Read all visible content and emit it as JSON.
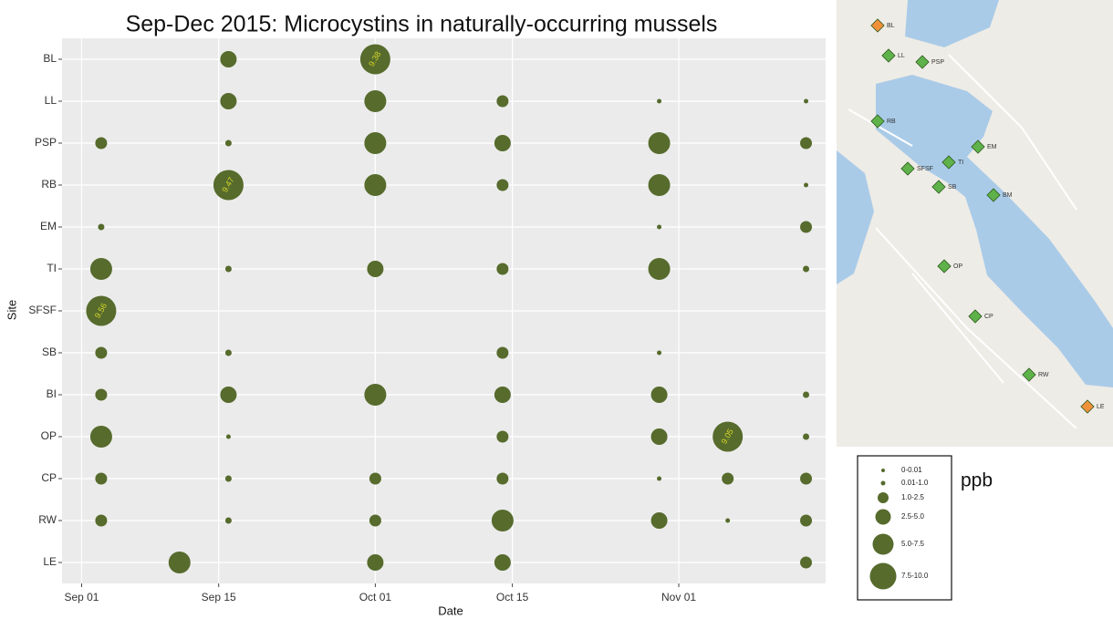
{
  "chart_data": {
    "type": "bubble",
    "title": "Sep-Dec 2015: Microcystins in naturally-occurring mussels",
    "x_label": "Date",
    "y_label": "Site",
    "categories": [
      "BL",
      "LL",
      "PSP",
      "RB",
      "EM",
      "TI",
      "SFSF",
      "SB",
      "BI",
      "OP",
      "CP",
      "RW",
      "LE"
    ],
    "xlim": [
      "Aug 30",
      "Nov 16"
    ],
    "xticks": [
      "Sep 01",
      "Sep 15",
      "Oct 01",
      "Oct 15",
      "Nov 01"
    ],
    "grid": true,
    "color": "#566b2c",
    "label_color": "#d6d62a",
    "series": [
      {
        "x": [
          "Sep 16",
          "Oct 01",
          "Sep 16",
          "Oct 01",
          "Oct 14",
          "Oct 30",
          "Nov 14",
          "Sep 03",
          "Sep 16",
          "Oct 01",
          "Oct 14",
          "Oct 30",
          "Nov 14",
          "Sep 16",
          "Oct 01",
          "Oct 14",
          "Oct 30",
          "Nov 14",
          "Sep 03",
          "Oct 30",
          "Nov 14",
          "Sep 03",
          "Sep 16",
          "Oct 01",
          "Oct 14",
          "Oct 30",
          "Nov 14",
          "Sep 03",
          "Sep 03",
          "Sep 16",
          "Oct 14",
          "Oct 30",
          "Sep 03",
          "Sep 16",
          "Oct 01",
          "Oct 14",
          "Oct 30",
          "Nov 14",
          "Sep 03",
          "Sep 16",
          "Oct 14",
          "Oct 30",
          "Nov 06",
          "Nov 14",
          "Sep 03",
          "Sep 16",
          "Oct 01",
          "Oct 14",
          "Oct 30",
          "Nov 06",
          "Nov 14",
          "Sep 03",
          "Sep 16",
          "Oct 01",
          "Oct 14",
          "Oct 30",
          "Nov 06",
          "Nov 14",
          "Sep 11",
          "Oct 01",
          "Oct 14",
          "Nov 14"
        ],
        "y": [
          "BL",
          "BL",
          "LL",
          "LL",
          "LL",
          "LL",
          "LL",
          "PSP",
          "PSP",
          "PSP",
          "PSP",
          "PSP",
          "PSP",
          "RB",
          "RB",
          "RB",
          "RB",
          "RB",
          "EM",
          "EM",
          "EM",
          "TI",
          "TI",
          "TI",
          "TI",
          "TI",
          "TI",
          "SFSF",
          "SB",
          "SB",
          "SB",
          "SB",
          "BI",
          "BI",
          "BI",
          "BI",
          "BI",
          "BI",
          "OP",
          "OP",
          "OP",
          "OP",
          "OP",
          "OP",
          "CP",
          "CP",
          "CP",
          "CP",
          "CP",
          "CP",
          "CP",
          "RW",
          "RW",
          "RW",
          "RW",
          "RW",
          "RW",
          "RW",
          "LE",
          "LE",
          "LE",
          "LE"
        ],
        "values": [
          4,
          9.38,
          4.5,
          6,
          2,
          0.005,
          0.005,
          2,
          0.5,
          5.5,
          4,
          6,
          2,
          9.47,
          5.5,
          2.2,
          5.5,
          0.005,
          0.3,
          0.005,
          2,
          6,
          0.5,
          3,
          1.5,
          7,
          0.6,
          9.56,
          1.5,
          0.4,
          2,
          0.005,
          1.5,
          4,
          7,
          4.5,
          3,
          0.6,
          6.5,
          0.005,
          1.5,
          3,
          9.05,
          0.8,
          2,
          0.4,
          1.5,
          1.2,
          0.005,
          2.2,
          2.3,
          1.2,
          0.4,
          1.6,
          6,
          3,
          0.005,
          2.3,
          5.5,
          3.5,
          4.5,
          1.5
        ],
        "value_labels": [
          null,
          "9.38",
          null,
          null,
          null,
          null,
          null,
          null,
          null,
          null,
          null,
          null,
          null,
          "9.47",
          null,
          null,
          null,
          null,
          null,
          null,
          null,
          null,
          null,
          null,
          null,
          null,
          null,
          "9.56",
          null,
          null,
          null,
          null,
          null,
          null,
          null,
          null,
          null,
          null,
          null,
          null,
          null,
          null,
          "9.05",
          null,
          null,
          null,
          null,
          null,
          null,
          null,
          null,
          null,
          null,
          null,
          null,
          null,
          null,
          null,
          null,
          null,
          null,
          null
        ]
      }
    ],
    "legend_title": "ppb",
    "size_legend": [
      {
        "range": [
          0,
          0.01
        ],
        "label": "0-0.01"
      },
      {
        "range": [
          0.01,
          1.0
        ],
        "label": "0.01-1.0"
      },
      {
        "range": [
          1.0,
          2.5
        ],
        "label": "1.0-2.5"
      },
      {
        "range": [
          2.5,
          5.0
        ],
        "label": "2.5-5.0"
      },
      {
        "range": [
          5.0,
          7.5
        ],
        "label": "5.0-7.5"
      },
      {
        "range": [
          7.5,
          10.0
        ],
        "label": "7.5-10.0"
      }
    ]
  },
  "map": {
    "markers": [
      {
        "label": "BL",
        "color": "#f0913a"
      },
      {
        "label": "LL",
        "color": "#5fb24a"
      },
      {
        "label": "PSP",
        "color": "#5fb24a"
      },
      {
        "label": "RB",
        "color": "#5fb24a"
      },
      {
        "label": "EM",
        "color": "#5fb24a"
      },
      {
        "label": "TI",
        "color": "#5fb24a"
      },
      {
        "label": "SFSF",
        "color": "#5fb24a"
      },
      {
        "label": "SB",
        "color": "#5fb24a"
      },
      {
        "label": "BM",
        "color": "#5fb24a"
      },
      {
        "label": "OP",
        "color": "#5fb24a"
      },
      {
        "label": "CP",
        "color": "#5fb24a"
      },
      {
        "label": "RW",
        "color": "#5fb24a"
      },
      {
        "label": "LE",
        "color": "#f0913a"
      }
    ]
  }
}
